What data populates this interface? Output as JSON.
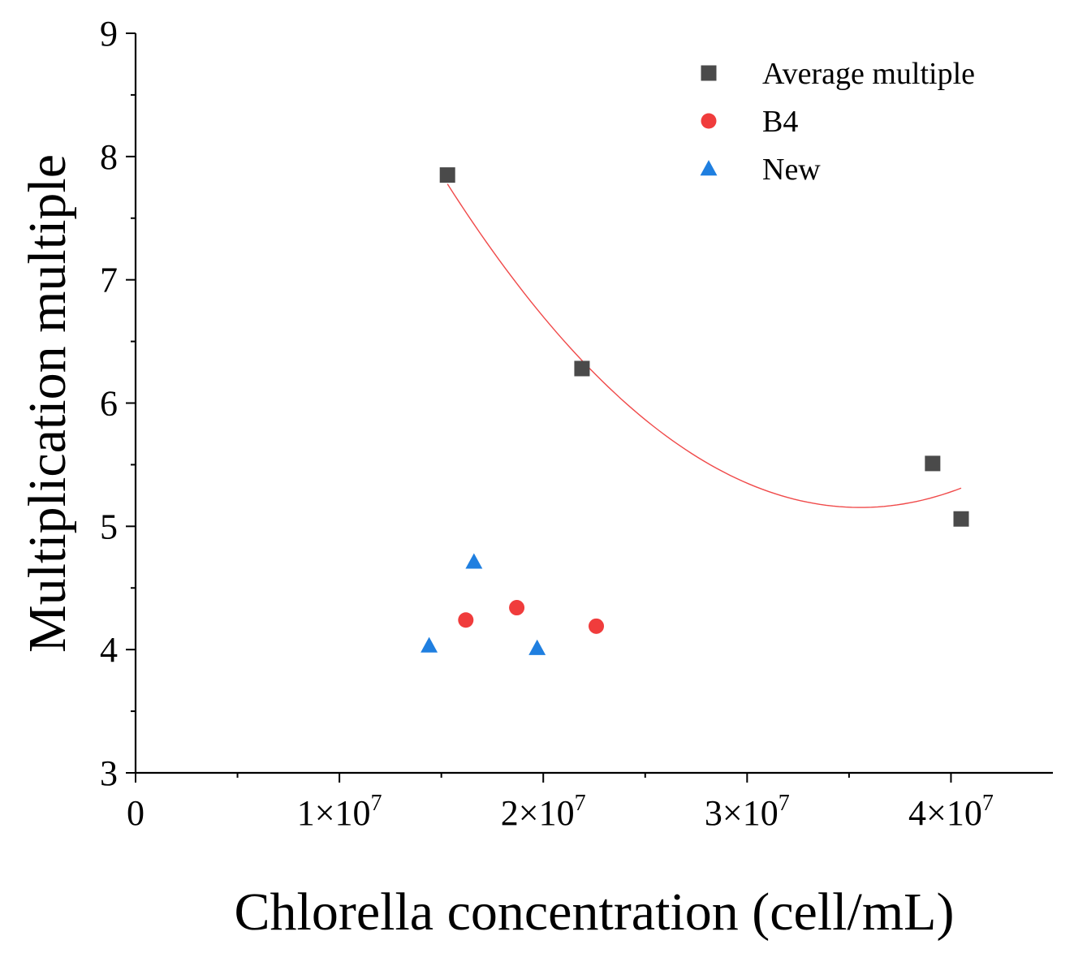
{
  "chart_data": {
    "type": "scatter",
    "title": "",
    "xlabel": "Chlorella concentration (cell/mL)",
    "ylabel": "Multiplication multiple",
    "xlim": [
      0,
      45000000
    ],
    "ylim": [
      3,
      9
    ],
    "x_ticks": [
      {
        "value": 0,
        "label": "0"
      },
      {
        "value": 10000000,
        "label": "1×10",
        "exp": "7"
      },
      {
        "value": 20000000,
        "label": "2×10",
        "exp": "7"
      },
      {
        "value": 30000000,
        "label": "3×10",
        "exp": "7"
      },
      {
        "value": 40000000,
        "label": "4×10",
        "exp": "7"
      }
    ],
    "y_ticks": [
      {
        "value": 3,
        "label": "3"
      },
      {
        "value": 4,
        "label": "4"
      },
      {
        "value": 5,
        "label": "5"
      },
      {
        "value": 6,
        "label": "6"
      },
      {
        "value": 7,
        "label": "7"
      },
      {
        "value": 8,
        "label": "8"
      },
      {
        "value": 9,
        "label": "9"
      }
    ],
    "legend_position": "top-right",
    "series": [
      {
        "name": "Average multiple",
        "marker": "square",
        "color": "#4a4a4a",
        "points": [
          {
            "x": 15300000,
            "y": 7.85
          },
          {
            "x": 21900000,
            "y": 6.28
          },
          {
            "x": 39100000,
            "y": 5.51
          },
          {
            "x": 40500000,
            "y": 5.06
          }
        ]
      },
      {
        "name": "B4",
        "marker": "circle",
        "color": "#f03c3c",
        "points": [
          {
            "x": 16200000,
            "y": 4.24
          },
          {
            "x": 18700000,
            "y": 4.34
          },
          {
            "x": 22600000,
            "y": 4.19
          }
        ]
      },
      {
        "name": "New",
        "marker": "triangle",
        "color": "#1f7fe0",
        "points": [
          {
            "x": 14400000,
            "y": 4.03
          },
          {
            "x": 16600000,
            "y": 4.71
          },
          {
            "x": 19700000,
            "y": 4.01
          }
        ]
      }
    ],
    "fit": {
      "series": "Average multiple",
      "type": "quadratic",
      "color": "#f04a4a",
      "x_range": [
        15300000,
        40500000
      ],
      "points": [
        {
          "x": 15300000,
          "y": 7.8
        },
        {
          "x": 22000000,
          "y": 6.27
        },
        {
          "x": 30000000,
          "y": 5.4
        },
        {
          "x": 35000000,
          "y": 5.15
        },
        {
          "x": 40500000,
          "y": 5.3
        }
      ]
    }
  }
}
